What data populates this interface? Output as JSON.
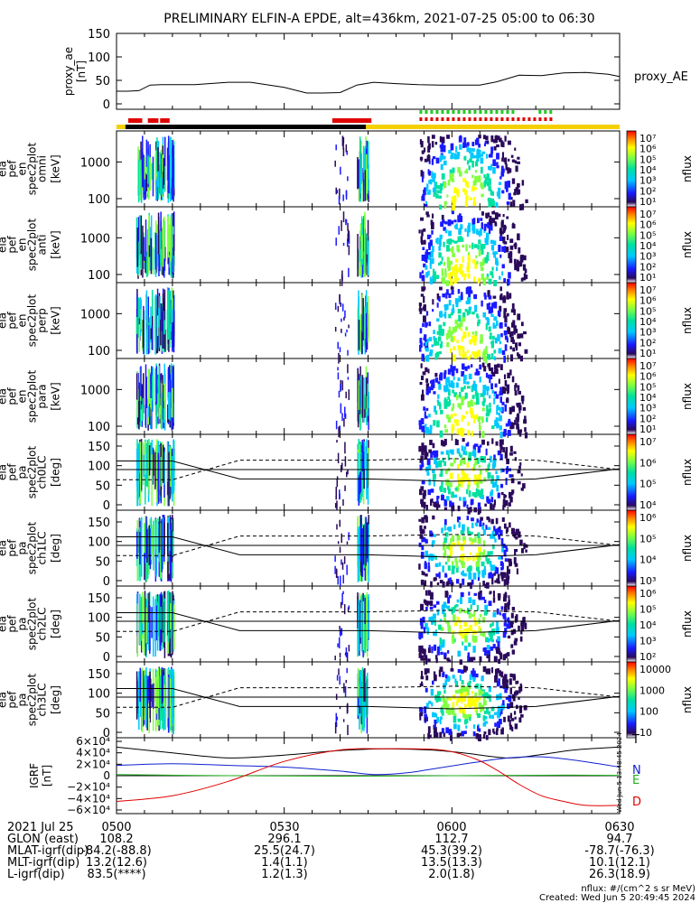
{
  "title": "PRELIMINARY ELFIN-A EPDE, alt=436km, 2021-07-25 05:00 to 06:30",
  "colors": {
    "state_bar": "#f5d000",
    "science_red": "#e00000",
    "science_green": "#22cc22",
    "black_bar": "#000000"
  },
  "panels": {
    "proxy": {
      "ylabel": [
        "proxy_ae",
        "[nT]"
      ],
      "yticks": [
        "150",
        "100",
        "50",
        "0"
      ],
      "legend": "proxy_AE"
    },
    "spectra": [
      {
        "ylabel": [
          "ela",
          "pef",
          "en",
          "spec2plot",
          "omni",
          "[keV]"
        ],
        "yticks": [
          "1000",
          "100"
        ]
      },
      {
        "ylabel": [
          "ela",
          "pef",
          "en",
          "spec2plot",
          "anti",
          "[keV]"
        ],
        "yticks": [
          "1000",
          "100"
        ]
      },
      {
        "ylabel": [
          "ela",
          "pef",
          "en",
          "spec2plot",
          "perp",
          "[keV]"
        ],
        "yticks": [
          "1000",
          "100"
        ]
      },
      {
        "ylabel": [
          "ela",
          "pef",
          "en",
          "spec2plot",
          "para",
          "[keV]"
        ],
        "yticks": [
          "1000",
          "100"
        ]
      }
    ],
    "pitch": [
      {
        "ylabel": [
          "ela",
          "pef",
          "pa",
          "spec2plot",
          "ch0LC",
          "[deg]"
        ],
        "yticks": [
          "150",
          "100",
          "50",
          "0"
        ]
      },
      {
        "ylabel": [
          "ela",
          "pef",
          "pa",
          "spec2plot",
          "ch1LC",
          "[deg]"
        ],
        "yticks": [
          "150",
          "100",
          "50",
          "0"
        ]
      },
      {
        "ylabel": [
          "ela",
          "pef",
          "pa",
          "spec2plot",
          "ch2LC",
          "[deg]"
        ],
        "yticks": [
          "150",
          "100",
          "50",
          "0"
        ]
      },
      {
        "ylabel": [
          "ela",
          "pef",
          "pa",
          "spec2plot",
          "ch3LC",
          "[deg]"
        ],
        "yticks": [
          "150",
          "100",
          "50",
          "0"
        ]
      }
    ],
    "igrf": {
      "ylabel": [
        "IGRF",
        "[nT]"
      ],
      "yticks": [
        "6×10⁴",
        "4×10⁴",
        "2×10⁴",
        "0",
        "−2×10⁴",
        "−4×10⁴",
        "−6×10⁴"
      ],
      "legend": [
        "T",
        "N",
        "E",
        "D"
      ]
    }
  },
  "colorbars": [
    {
      "label": "nflux",
      "ticks": [
        "10⁷",
        "10⁶",
        "10⁵",
        "10⁴",
        "10³",
        "10²",
        "10¹"
      ]
    },
    {
      "label": "nflux",
      "ticks": [
        "10⁷",
        "10⁶",
        "10⁵",
        "10⁴",
        "10³",
        "10²",
        "10¹"
      ]
    },
    {
      "label": "nflux",
      "ticks": [
        "10⁷",
        "10⁶",
        "10⁵",
        "10⁴",
        "10³",
        "10²",
        "10¹"
      ]
    },
    {
      "label": "nflux",
      "ticks": [
        "10⁷",
        "10⁶",
        "10⁵",
        "10⁴",
        "10³",
        "10²",
        "10¹"
      ]
    },
    {
      "label": "nflux",
      "ticks": [
        "10⁷",
        "10⁶",
        "10⁵",
        "10⁴"
      ]
    },
    {
      "label": "nflux",
      "ticks": [
        "10⁶",
        "10⁵",
        "10⁴",
        "10³"
      ]
    },
    {
      "label": "nflux",
      "ticks": [
        "10⁶",
        "10⁵",
        "10⁴",
        "10³",
        "10²"
      ]
    },
    {
      "label": "nflux",
      "ticks": [
        "10000",
        "1000",
        "100",
        "10"
      ]
    }
  ],
  "footer": {
    "rows": [
      {
        "label": "2021 Jul 25",
        "values": [
          "0500",
          "0530",
          "0600",
          "0630"
        ]
      },
      {
        "label": "GLON (east)",
        "values": [
          "108.2",
          "296.1",
          "112.7",
          "94.7"
        ]
      },
      {
        "label": "MLAT-igrf(dip)",
        "values": [
          "-84.2(-88.8)",
          "25.5(24.7)",
          "45.3(39.2)",
          "-78.7(-76.3)"
        ]
      },
      {
        "label": "MLT-igrf(dip)",
        "values": "13.2(12.6)|1.4(1.1)|13.5(13.3)|10.1(12.1)"
      },
      {
        "label": "L-igrf(dip)",
        "values": "83.5(****)|1.2(1.3)|2.0(1.8)|26.3(18.9)"
      }
    ],
    "units_note": "nflux: #/(cm^2 s sr MeV)",
    "created": "Created: Wed Jun  5 20:49:45 2024",
    "side_stamp": "Wed Jun  5 13:48:45 2024"
  },
  "chart_data": {
    "type": "heatmap",
    "title": "PRELIMINARY ELFIN-A EPDE, alt=436km, 2021-07-25 05:00 to 06:30",
    "x_range_minutes": [
      0,
      90
    ],
    "xtick_labels": [
      "0500",
      "0530",
      "0600",
      "0630"
    ],
    "proxy_ae": {
      "ylim": [
        0,
        150
      ],
      "t": [
        0,
        2,
        4,
        6,
        8,
        10,
        14,
        20,
        24,
        30,
        34,
        37,
        40,
        43,
        46,
        50,
        54,
        58,
        62,
        65,
        68,
        72,
        76,
        80,
        84,
        88,
        90
      ],
      "v": [
        27,
        27,
        28,
        40,
        41,
        41,
        41,
        46,
        46,
        35,
        23,
        23,
        24,
        40,
        46,
        43,
        41,
        40,
        40,
        40,
        47,
        61,
        60,
        66,
        67,
        63,
        58
      ]
    },
    "science_zones": {
      "red_top": [
        [
          2.1,
          4.6
        ],
        [
          5.6,
          7.5
        ],
        [
          7.8,
          9.5
        ],
        [
          38.6,
          45.6
        ]
      ],
      "black": [
        [
          1.6,
          44.6
        ]
      ],
      "yellow": [
        [
          0,
          90
        ]
      ],
      "green_dashed": [
        [
          54.2,
          71.0
        ],
        [
          75.5,
          77.7
        ]
      ],
      "red_dashed": [
        [
          54.2,
          77.7
        ]
      ]
    },
    "energy_ylim_keV": [
      60,
      7000
    ],
    "pitch_ylim_deg": [
      0,
      180
    ],
    "igrf": {
      "ylim": [
        -60000,
        60000
      ],
      "series": [
        {
          "name": "T",
          "color": "#000000",
          "t": [
            0,
            10,
            20,
            30,
            40,
            48,
            56,
            62,
            70,
            76,
            82,
            90
          ],
          "v": [
            50000,
            40000,
            31000,
            36000,
            44000,
            47000,
            45000,
            40000,
            31000,
            37000,
            45000,
            50000
          ]
        },
        {
          "name": "N",
          "color": "#1020d0",
          "t": [
            0,
            10,
            20,
            30,
            40,
            46,
            52,
            58,
            64,
            70,
            76,
            82,
            90
          ],
          "v": [
            18000,
            21000,
            18000,
            15000,
            8000,
            2000,
            5000,
            14000,
            23000,
            31000,
            33000,
            27000,
            15000
          ]
        },
        {
          "name": "E",
          "color": "#20b020",
          "t": [
            0,
            20,
            40,
            60,
            80,
            90
          ],
          "v": [
            2000,
            0,
            -1000,
            0,
            1000,
            500
          ]
        },
        {
          "name": "D",
          "color": "#e00000",
          "t": [
            0,
            10,
            20,
            30,
            40,
            48,
            58,
            64,
            68,
            72,
            76,
            80,
            84,
            90
          ],
          "v": [
            -45000,
            -35000,
            -10000,
            25000,
            45000,
            47000,
            45000,
            30000,
            10000,
            -15000,
            -35000,
            -45000,
            -52000,
            -52000
          ]
        }
      ]
    },
    "flux_blobs": [
      {
        "t0": 3.5,
        "t1": 6.5,
        "kind": "streak"
      },
      {
        "t0": 6.8,
        "t1": 8.6,
        "kind": "streak"
      },
      {
        "t0": 9.0,
        "t1": 10.2,
        "kind": "streak"
      },
      {
        "t0": 39.0,
        "t1": 41.5,
        "kind": "scatter"
      },
      {
        "t0": 43.0,
        "t1": 45.0,
        "kind": "streak"
      },
      {
        "t0": 54.0,
        "t1": 76.0,
        "kind": "cone"
      }
    ]
  }
}
